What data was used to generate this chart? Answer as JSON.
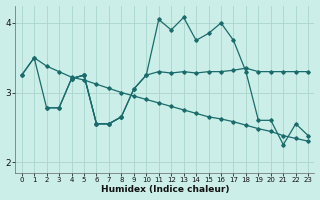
{
  "xlabel": "Humidex (Indice chaleur)",
  "background_color": "#cceee8",
  "grid_color": "#aad4cc",
  "line_color": "#1a6b6b",
  "xlim": [
    -0.5,
    23.5
  ],
  "ylim": [
    1.85,
    4.25
  ],
  "yticks": [
    2,
    3,
    4
  ],
  "xticks": [
    0,
    1,
    2,
    3,
    4,
    5,
    6,
    7,
    8,
    9,
    10,
    11,
    12,
    13,
    14,
    15,
    16,
    17,
    18,
    19,
    20,
    21,
    22,
    23
  ],
  "series": [
    {
      "x": [
        0,
        1,
        2,
        3,
        4,
        5,
        6,
        7,
        8,
        9,
        10,
        11,
        12,
        13,
        14,
        15,
        16,
        17,
        18,
        19,
        20,
        21,
        22,
        23
      ],
      "y": [
        3.25,
        3.5,
        3.38,
        3.3,
        3.22,
        3.18,
        3.12,
        3.06,
        3.0,
        2.95,
        2.9,
        2.85,
        2.8,
        2.75,
        2.7,
        2.65,
        2.62,
        2.58,
        2.53,
        2.48,
        2.44,
        2.38,
        2.34,
        2.3
      ]
    },
    {
      "x": [
        0,
        1,
        2,
        3,
        4,
        5,
        6,
        7,
        8,
        9,
        10,
        11,
        12,
        13,
        14,
        15,
        16,
        17,
        18,
        19,
        20,
        21,
        22,
        23
      ],
      "y": [
        3.25,
        3.5,
        2.78,
        2.78,
        3.2,
        3.25,
        2.55,
        2.55,
        2.65,
        3.05,
        3.25,
        4.05,
        3.9,
        4.08,
        3.75,
        3.85,
        4.0,
        3.75,
        3.3,
        2.6,
        2.6,
        2.25,
        2.55,
        2.38
      ]
    },
    {
      "x": [
        2,
        3,
        4,
        5,
        6,
        7,
        8,
        9,
        10,
        11,
        12,
        13,
        14,
        15,
        16,
        17,
        18,
        19,
        20,
        21,
        22,
        23
      ],
      "y": [
        2.78,
        2.78,
        3.2,
        3.25,
        2.55,
        2.55,
        2.65,
        3.05,
        3.25,
        3.3,
        3.28,
        3.3,
        3.28,
        3.3,
        3.3,
        3.32,
        3.35,
        3.3,
        3.3,
        3.3,
        3.3,
        3.3
      ]
    },
    {
      "x": [
        4,
        5,
        6,
        7,
        8
      ],
      "y": [
        3.2,
        3.25,
        2.55,
        2.55,
        2.65
      ]
    }
  ]
}
